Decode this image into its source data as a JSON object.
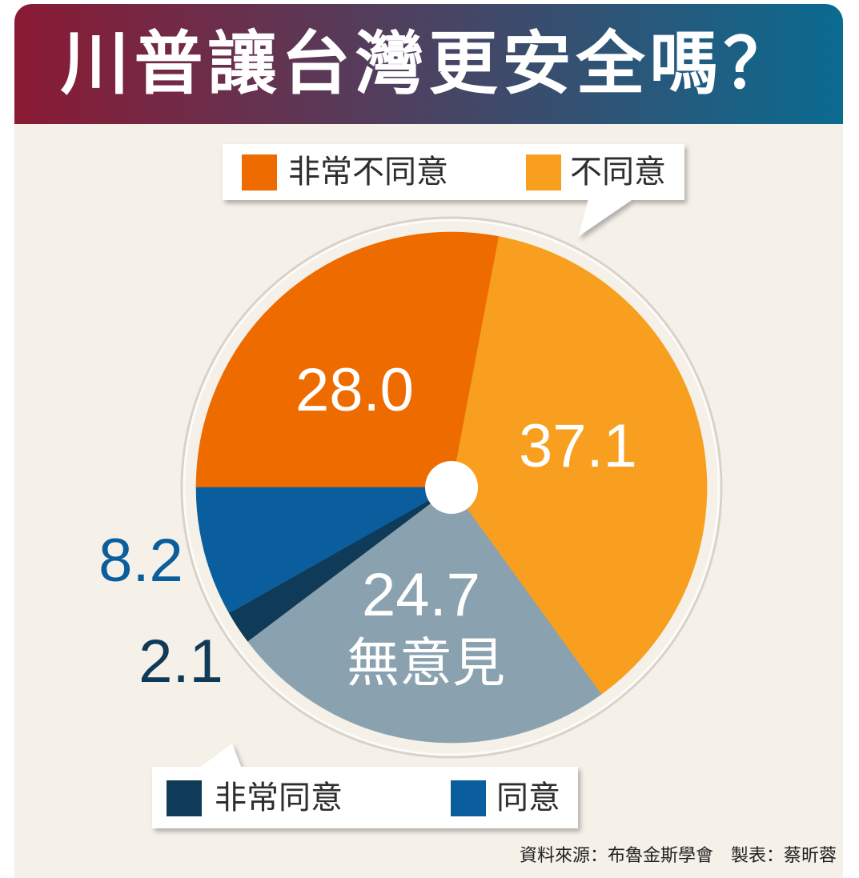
{
  "chart_data": {
    "type": "pie",
    "title": "川普讓台灣更安全嗎？",
    "categories": [
      "非常不同意",
      "不同意",
      "無意見",
      "非常同意",
      "同意"
    ],
    "values": [
      28.0,
      37.1,
      24.7,
      2.1,
      8.2
    ],
    "data_labels": [
      "28.0",
      "37.1",
      "24.7",
      "2.1",
      "8.2"
    ],
    "colors": [
      "#ee6b00",
      "#f89f1f",
      "#8aa2b0",
      "#0f3a58",
      "#0b5e9d"
    ],
    "legend_placement": "top and bottom"
  },
  "source": "資料來源：布魯金斯學會　製表：蔡昕蓉",
  "theme": {
    "title_gradient": [
      "#8b1a34",
      "#0a6b90"
    ],
    "panel_background": "#f5f0e8"
  }
}
